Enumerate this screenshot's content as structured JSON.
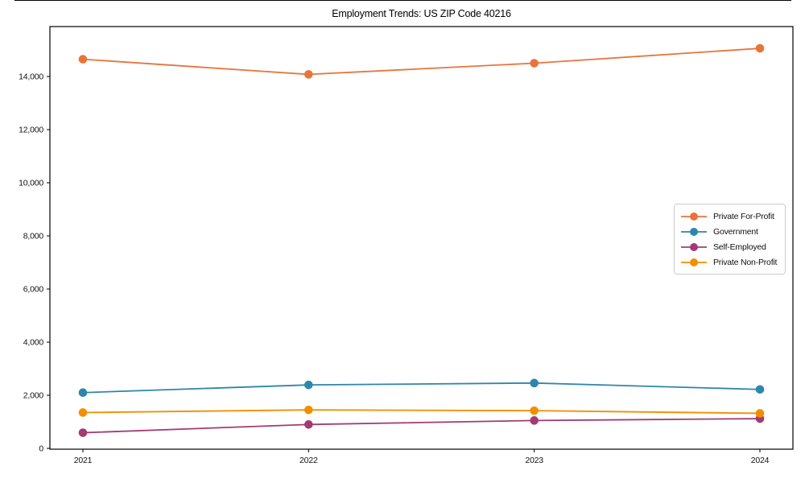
{
  "window": {
    "top_edge_color": "#000000"
  },
  "chart_data": {
    "type": "line",
    "title": "Employment Trends: US ZIP Code 40216",
    "categories": [
      "2021",
      "2022",
      "2023",
      "2024"
    ],
    "series": [
      {
        "name": "Private For-Profit",
        "color": "#E8743B",
        "values": [
          14650,
          14080,
          14500,
          15060
        ]
      },
      {
        "name": "Government",
        "color": "#2E86AB",
        "values": [
          2100,
          2390,
          2460,
          2220
        ]
      },
      {
        "name": "Self-Employed",
        "color": "#A23B72",
        "values": [
          590,
          900,
          1050,
          1120
        ]
      },
      {
        "name": "Private Non-Profit",
        "color": "#F18F01",
        "values": [
          1350,
          1450,
          1420,
          1320
        ]
      }
    ],
    "xlabel": "",
    "ylabel": "",
    "ylim": [
      -30,
      15880
    ],
    "yticks": [
      0,
      2000,
      4000,
      6000,
      8000,
      10000,
      12000,
      14000
    ],
    "ytick_labels": [
      "0",
      "2,000",
      "4,000",
      "6,000",
      "8,000",
      "10,000",
      "12,000",
      "14,000"
    ],
    "grid": false,
    "legend_position": "center right",
    "axis_color": "#000000",
    "tick_label_color": "#111111",
    "legend_border_color": "#cccccc",
    "plot_background": "#ffffff"
  }
}
